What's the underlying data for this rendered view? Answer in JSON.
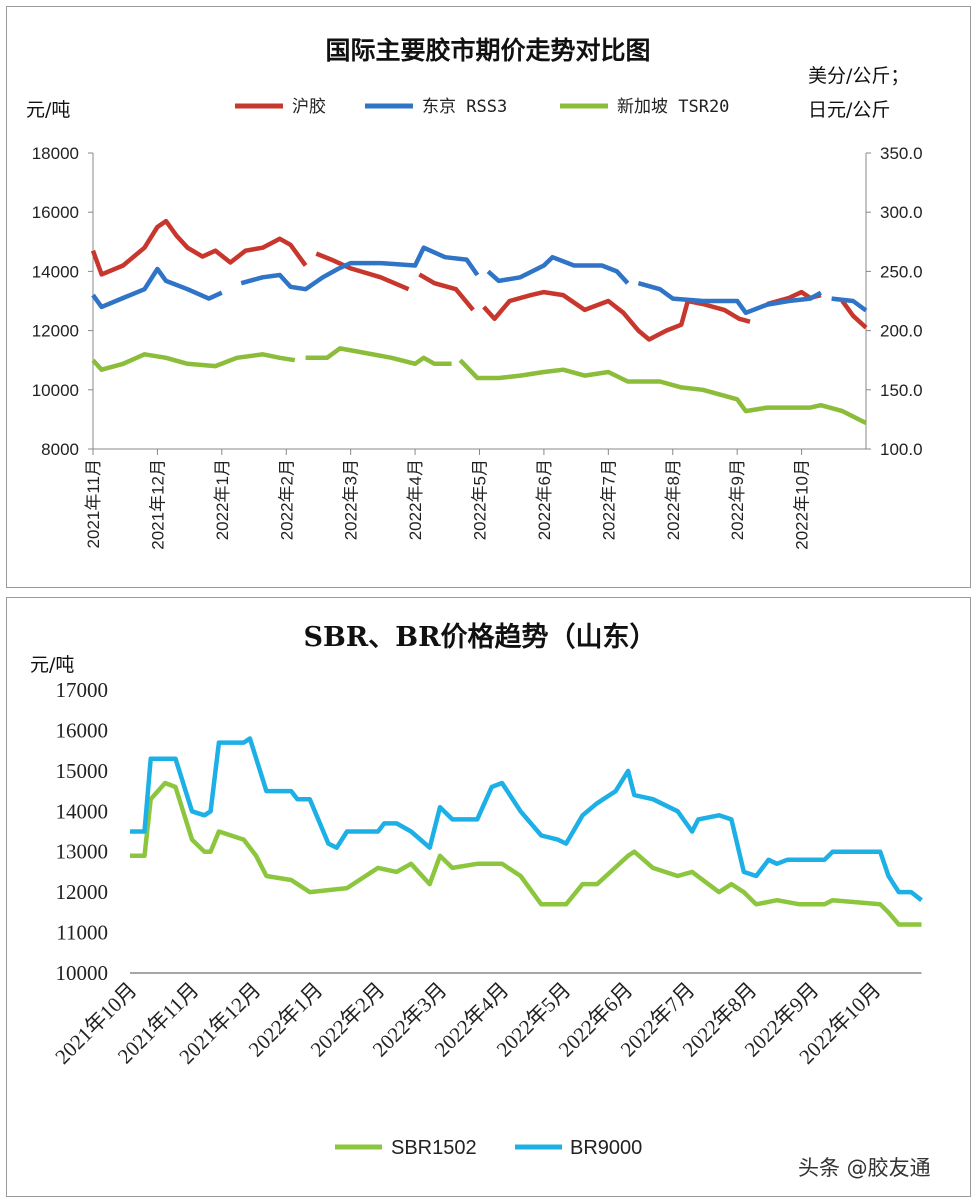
{
  "watermark": "头条 @胶友通",
  "chart_data": [
    {
      "type": "line",
      "title": "国际主要胶市期价走势对比图",
      "ylabel": "元/吨",
      "y2label_line1": "美分/公斤；",
      "y2label_line2": "日元/公斤",
      "ylim": [
        8000,
        18000
      ],
      "y2lim": [
        100,
        350
      ],
      "yticks": [
        "8000",
        "10000",
        "12000",
        "14000",
        "16000",
        "18000"
      ],
      "y2ticks": [
        "100.0",
        "150.0",
        "200.0",
        "250.0",
        "300.0",
        "350.0"
      ],
      "xticks": [
        "2021年11月",
        "2021年12月",
        "2022年1月",
        "2022年2月",
        "2022年3月",
        "2022年4月",
        "2022年5月",
        "2022年6月",
        "2022年7月",
        "2022年8月",
        "2022年9月",
        "2022年10月"
      ],
      "xlim": [
        "2021-11-01",
        "2022-10-31"
      ],
      "grid": false,
      "legend": "top",
      "series": [
        {
          "name": "沪胶",
          "axis": "left",
          "color": "#c8372d",
          "x": [
            "2021-11-01",
            "2021-11-05",
            "2021-11-15",
            "2021-11-25",
            "2021-12-01",
            "2021-12-05",
            "2021-12-10",
            "2021-12-15",
            "2021-12-22",
            "2021-12-28",
            "2022-01-05",
            "2022-01-12",
            "2022-01-20",
            "2022-01-28",
            "2022-02-03",
            "2022-02-10",
            null,
            "2022-02-15",
            "2022-02-22",
            "2022-03-01",
            "2022-03-15",
            "2022-03-28",
            null,
            "2022-04-03",
            "2022-04-10",
            "2022-04-20",
            "2022-04-28",
            null,
            "2022-05-03",
            "2022-05-08",
            "2022-05-15",
            "2022-05-25",
            "2022-06-01",
            "2022-06-10",
            "2022-06-20",
            "2022-07-01",
            "2022-07-08",
            "2022-07-15",
            "2022-07-20",
            "2022-07-28",
            "2022-08-05",
            "2022-08-08",
            "2022-08-15",
            "2022-08-25",
            "2022-09-02",
            "2022-09-07",
            null,
            "2022-09-15",
            "2022-09-25",
            "2022-10-01",
            "2022-10-05",
            "2022-10-10",
            null,
            "2022-10-20",
            "2022-10-25",
            "2022-10-31"
          ],
          "values": [
            14700,
            13900,
            14200,
            14800,
            15500,
            15700,
            15200,
            14800,
            14500,
            14700,
            14300,
            14700,
            14800,
            15100,
            14900,
            14200,
            null,
            14600,
            14400,
            14100,
            13800,
            13400,
            null,
            13900,
            13600,
            13400,
            12700,
            null,
            12800,
            12400,
            13000,
            13200,
            13300,
            13200,
            12700,
            13000,
            12600,
            12000,
            11700,
            12000,
            12200,
            13000,
            12900,
            12700,
            12400,
            12300,
            null,
            12900,
            13100,
            13300,
            13100,
            13200,
            null,
            13000,
            12500,
            12100
          ]
        },
        {
          "name": "东京 RSS3",
          "axis": "right",
          "color": "#2f74c6",
          "x": [
            "2021-11-01",
            "2021-11-05",
            "2021-11-15",
            "2021-11-25",
            "2021-12-01",
            "2021-12-05",
            "2021-12-15",
            "2021-12-25",
            "2022-01-01",
            null,
            "2022-01-10",
            "2022-01-20",
            "2022-01-28",
            "2022-02-03",
            "2022-02-10",
            "2022-02-18",
            "2022-02-25",
            "2022-03-01",
            "2022-03-15",
            "2022-03-31",
            "2022-04-05",
            "2022-04-15",
            "2022-04-25",
            "2022-04-30",
            null,
            "2022-05-05",
            "2022-05-10",
            "2022-05-20",
            "2022-06-01",
            "2022-06-05",
            "2022-06-15",
            "2022-06-28",
            "2022-07-05",
            "2022-07-10",
            null,
            "2022-07-15",
            "2022-07-25",
            "2022-08-01",
            "2022-08-15",
            "2022-08-31",
            "2022-09-05",
            "2022-09-15",
            "2022-09-25",
            "2022-10-05",
            "2022-10-10",
            null,
            "2022-10-15",
            "2022-10-25",
            "2022-10-31"
          ],
          "values": [
            230,
            220,
            227.5,
            235,
            252,
            242,
            235,
            227,
            232,
            null,
            240,
            245,
            247,
            237,
            235,
            245,
            252,
            257,
            257,
            255,
            270,
            262,
            260,
            247,
            null,
            250,
            242,
            245,
            255,
            262,
            255,
            255,
            250,
            240,
            null,
            240,
            235,
            227,
            225,
            225,
            215,
            222,
            225,
            227,
            232,
            null,
            227,
            225,
            217
          ]
        },
        {
          "name": "新加坡 TSR20",
          "axis": "right",
          "color": "#8bbd3a",
          "x": [
            "2021-11-01",
            "2021-11-05",
            "2021-11-15",
            "2021-11-25",
            "2021-12-05",
            "2021-12-15",
            "2021-12-28",
            "2022-01-08",
            "2022-01-20",
            "2022-01-28",
            "2022-02-05",
            null,
            "2022-02-10",
            "2022-02-20",
            "2022-02-26",
            "2022-03-05",
            "2022-03-20",
            "2022-03-31",
            "2022-04-05",
            "2022-04-10",
            "2022-04-18",
            null,
            "2022-04-22",
            "2022-04-30",
            "2022-05-10",
            "2022-05-20",
            "2022-06-01",
            "2022-06-10",
            "2022-06-20",
            "2022-07-01",
            "2022-07-10",
            "2022-07-25",
            "2022-08-05",
            "2022-08-15",
            "2022-08-31",
            "2022-09-05",
            "2022-09-15",
            "2022-09-25",
            "2022-10-05",
            "2022-10-10",
            "2022-10-20",
            "2022-10-31"
          ],
          "values": [
            175,
            167,
            172,
            180,
            177,
            172,
            170,
            177,
            180,
            177,
            175,
            null,
            177,
            177,
            185,
            182,
            177,
            172,
            177,
            172,
            172,
            null,
            175,
            160,
            160,
            162,
            165,
            167,
            162,
            165,
            157,
            157,
            152,
            150,
            142,
            132,
            135,
            135,
            135,
            137,
            132,
            122
          ]
        }
      ]
    },
    {
      "type": "line",
      "title": "SBR、BR价格趋势（山东）",
      "ylabel": "元/吨",
      "ylim": [
        10000,
        17000
      ],
      "yticks": [
        "10000",
        "11000",
        "12000",
        "13000",
        "14000",
        "15000",
        "16000",
        "17000"
      ],
      "xticks": [
        "2021年10月",
        "2021年11月",
        "2021年12月",
        "2022年1月",
        "2022年2月",
        "2022年3月",
        "2022年4月",
        "2022年5月",
        "2022年6月",
        "2022年7月",
        "2022年8月",
        "2022年9月",
        "2022年10月"
      ],
      "xlim": [
        "2021-10-01",
        "2022-10-24"
      ],
      "grid": false,
      "legend": "bottom",
      "series": [
        {
          "name": "SBR1502",
          "color": "#8cc63f",
          "x": [
            "2021-10-01",
            "2021-10-08",
            "2021-10-11",
            "2021-10-18",
            "2021-10-23",
            "2021-11-01",
            "2021-11-07",
            "2021-11-10",
            "2021-11-14",
            "2021-11-26",
            "2021-12-02",
            "2021-12-07",
            "2021-12-19",
            "2021-12-28",
            "2022-01-16",
            "2022-02-01",
            "2022-02-10",
            "2022-02-17",
            "2022-02-26",
            "2022-03-01",
            "2022-03-07",
            "2022-03-19",
            "2022-04-01",
            "2022-04-10",
            "2022-04-20",
            "2022-04-28",
            "2022-05-02",
            "2022-05-10",
            "2022-05-17",
            "2022-06-02",
            "2022-06-05",
            "2022-06-14",
            "2022-06-26",
            "2022-07-03",
            "2022-07-16",
            "2022-07-22",
            "2022-07-28",
            "2022-08-04",
            "2022-08-14",
            "2022-08-25",
            "2022-09-07",
            "2022-09-11",
            "2022-10-04",
            "2022-10-08",
            "2022-10-13",
            "2022-10-24"
          ],
          "values": [
            12900,
            12900,
            14300,
            14700,
            14600,
            13300,
            13000,
            13000,
            13500,
            13300,
            12900,
            12400,
            12300,
            12000,
            12100,
            12600,
            12500,
            12700,
            12200,
            12900,
            12600,
            12700,
            12700,
            12400,
            11700,
            11700,
            11700,
            12200,
            12200,
            12900,
            13000,
            12600,
            12400,
            12500,
            12000,
            12200,
            12000,
            11700,
            11800,
            11700,
            11700,
            11800,
            11700,
            11500,
            11200,
            11200
          ]
        },
        {
          "name": "BR9000",
          "color": "#1cb0e6",
          "x": [
            "2021-10-01",
            "2021-10-08",
            "2021-10-11",
            "2021-10-23",
            "2021-11-01",
            "2021-11-07",
            "2021-11-10",
            "2021-11-14",
            "2021-11-26",
            "2021-11-29",
            "2021-12-07",
            "2021-12-19",
            "2021-12-22",
            "2021-12-28",
            "2022-01-07",
            "2022-01-11",
            "2022-01-16",
            "2022-02-01",
            "2022-02-04",
            "2022-02-10",
            "2022-02-17",
            "2022-02-26",
            "2022-03-01",
            "2022-03-07",
            "2022-03-19",
            "2022-03-26",
            "2022-04-01",
            "2022-04-10",
            "2022-04-20",
            "2022-04-28",
            "2022-05-02",
            "2022-05-10",
            "2022-05-17",
            "2022-05-26",
            "2022-06-02",
            "2022-06-05",
            "2022-06-14",
            "2022-06-26",
            "2022-07-03",
            "2022-07-06",
            "2022-07-16",
            "2022-07-22",
            "2022-07-28",
            "2022-08-04",
            "2022-08-10",
            "2022-08-14",
            "2022-08-19",
            "2022-09-07",
            "2022-09-11",
            "2022-10-04",
            "2022-10-08",
            "2022-10-13",
            "2022-10-19",
            "2022-10-24"
          ],
          "values": [
            13500,
            13500,
            15300,
            15300,
            14000,
            13900,
            14000,
            15700,
            15700,
            15800,
            14500,
            14500,
            14300,
            14300,
            13200,
            13100,
            13500,
            13500,
            13700,
            13700,
            13500,
            13100,
            14100,
            13800,
            13800,
            14600,
            14700,
            14000,
            13400,
            13300,
            13200,
            13900,
            14200,
            14500,
            15000,
            14400,
            14300,
            14000,
            13500,
            13800,
            13900,
            13800,
            12500,
            12400,
            12800,
            12700,
            12800,
            12800,
            13000,
            13000,
            12400,
            12000,
            12000,
            11800
          ]
        }
      ]
    }
  ]
}
